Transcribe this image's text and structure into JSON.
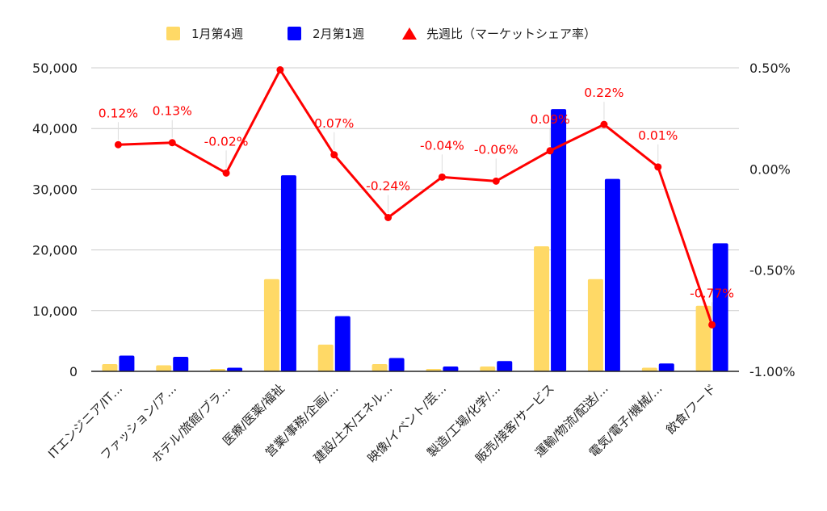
{
  "chart_data": {
    "type": "bar",
    "categories": [
      "ITエンジニア/IT…",
      "ファッション/ア…",
      "ホテル/旅館/ブラ…",
      "医療/医薬/福祉",
      "営業/事務/企画/…",
      "建設/土木/エネル…",
      "映像/イベント/芸…",
      "製造/工場/化学/…",
      "販売/接客/サービス",
      "運輸/物流/配送/…",
      "電気/電子/機械/…",
      "飲食/フード"
    ],
    "series": [
      {
        "name": "1月第4週",
        "type": "bar",
        "axis": "left",
        "color": "#ffd966",
        "values": [
          1200,
          1000,
          400,
          15200,
          4400,
          1200,
          400,
          800,
          20600,
          15200,
          600,
          10800
        ]
      },
      {
        "name": "2月第1週",
        "type": "bar",
        "axis": "left",
        "color": "#0000ff",
        "values": [
          2600,
          2400,
          600,
          32300,
          9100,
          2200,
          800,
          1700,
          43200,
          31700,
          1300,
          21100
        ]
      },
      {
        "name": "先週比（マーケットシェア率）",
        "type": "line",
        "axis": "right",
        "color": "#ff0000",
        "values": [
          0.12,
          0.13,
          -0.02,
          0.49,
          0.07,
          -0.24,
          -0.04,
          -0.06,
          0.09,
          0.22,
          0.01,
          -0.77
        ],
        "labels": [
          "0.12%",
          "0.13%",
          "-0.02%",
          "",
          "0.07%",
          "-0.24%",
          "-0.04%",
          "-0.06%",
          "0.09%",
          "0.22%",
          "0.01%",
          "-0.77%"
        ]
      }
    ],
    "y_left": {
      "min": 0,
      "max": 50000,
      "ticks": [
        "0",
        "10,000",
        "20,000",
        "30,000",
        "40,000",
        "50,000"
      ]
    },
    "y_right": {
      "min": -1.0,
      "max": 0.5,
      "ticks": [
        "-1.00%",
        "-0.50%",
        "0.00%",
        "0.50%"
      ]
    },
    "grid": true,
    "legend_position": "top"
  }
}
